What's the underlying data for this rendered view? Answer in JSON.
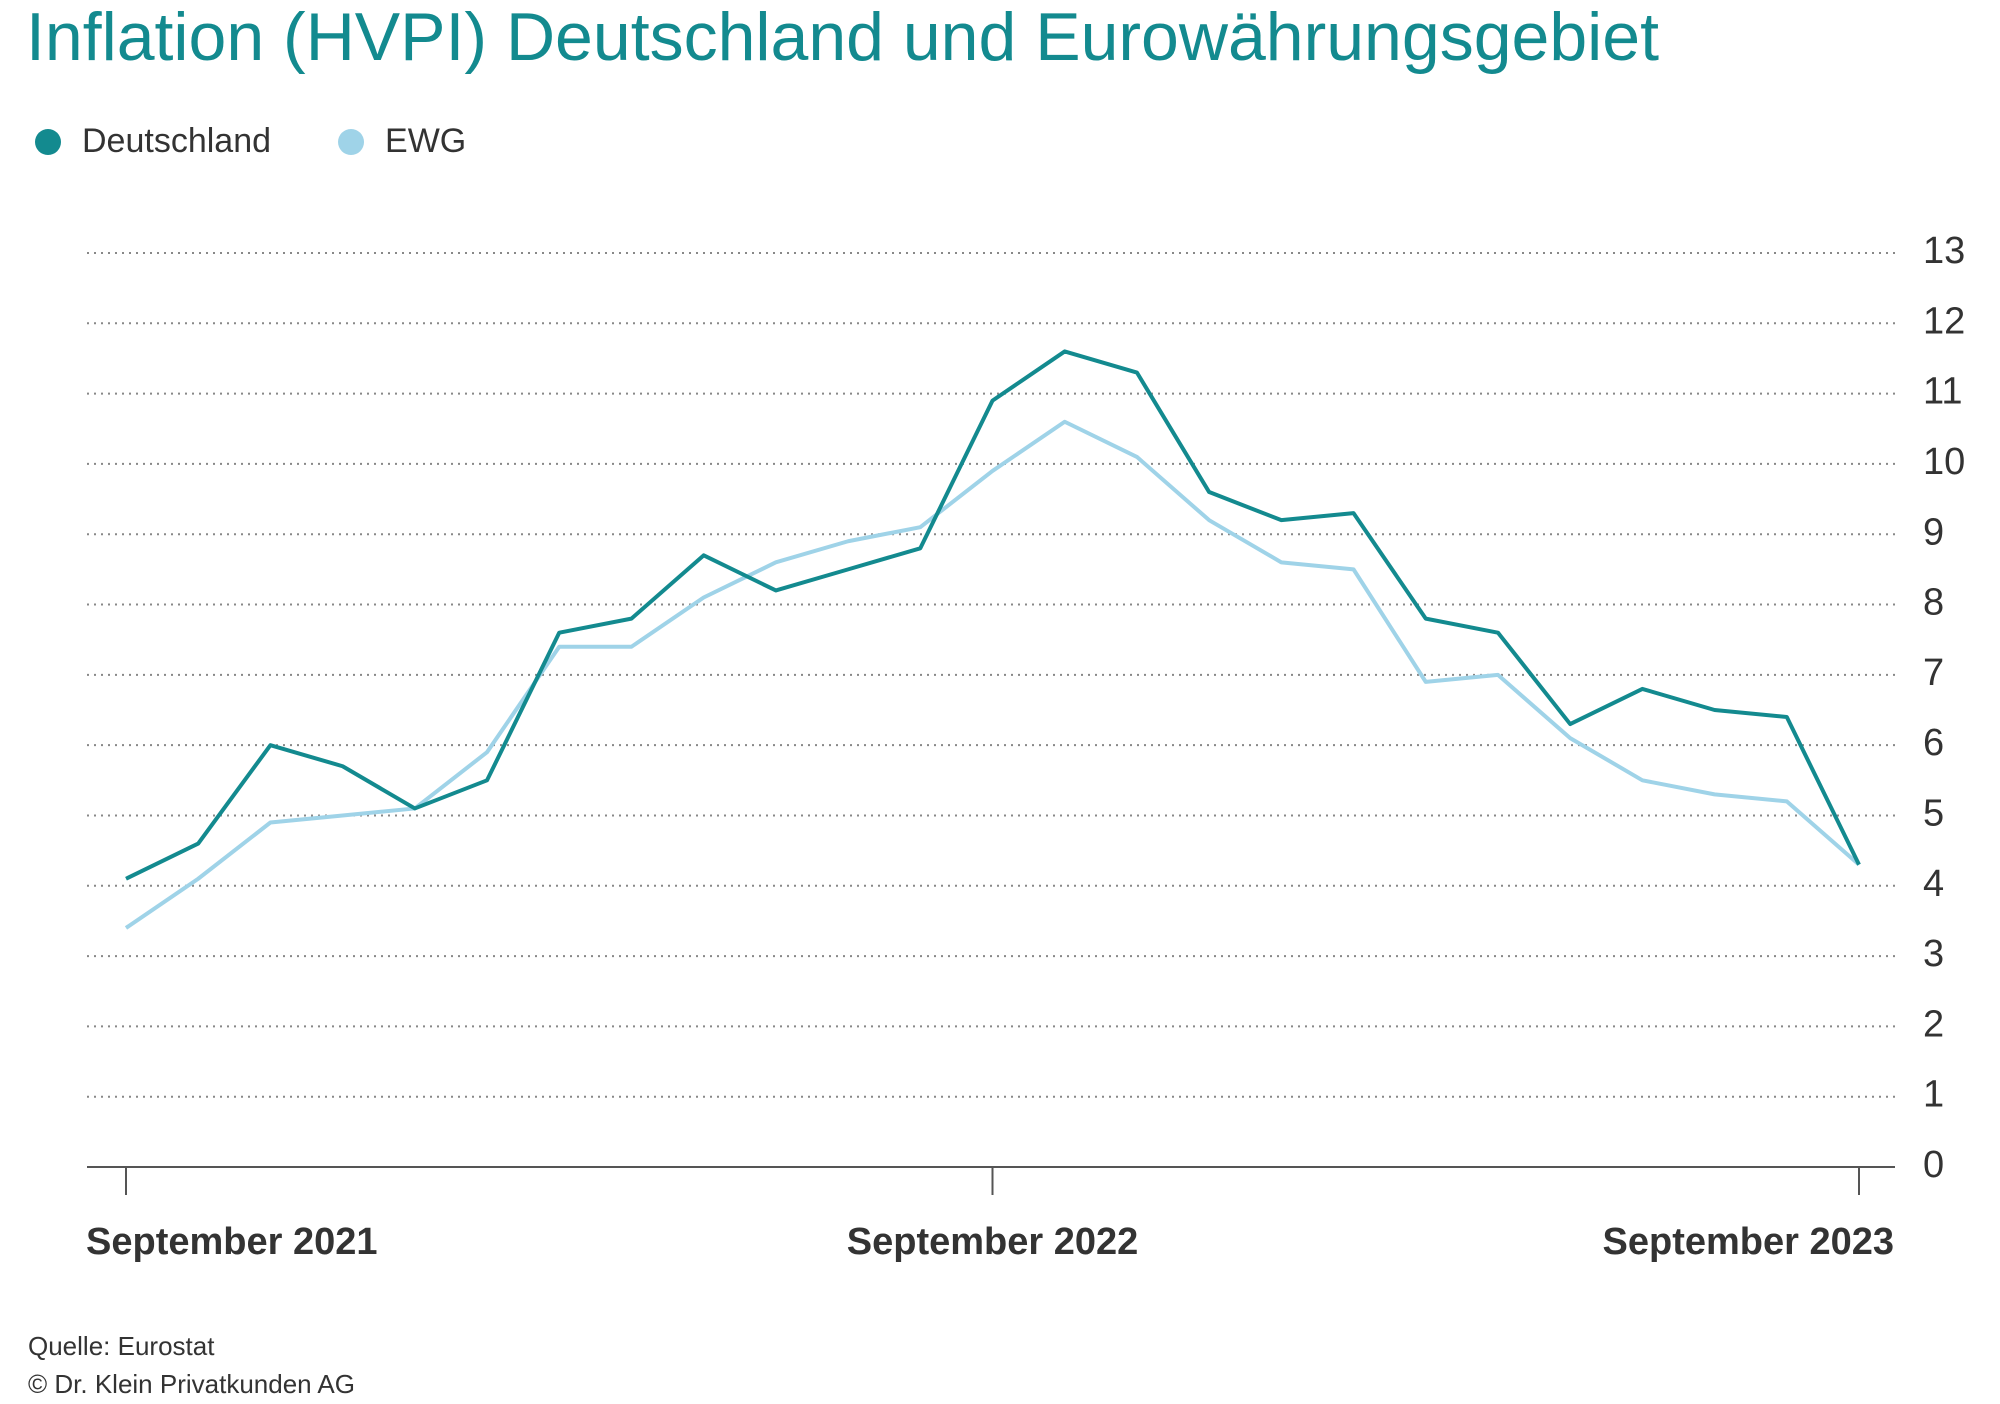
{
  "chart_data": {
    "type": "line",
    "title": "Inflation (HVPI) Deutschland und Eurowährungsgebiet",
    "categories": [
      "September 2021",
      null,
      null,
      null,
      null,
      null,
      null,
      null,
      null,
      null,
      null,
      null,
      "September 2022",
      null,
      null,
      null,
      null,
      null,
      null,
      null,
      null,
      null,
      null,
      null,
      "September 2023"
    ],
    "series": [
      {
        "name": "Deutschland",
        "color": "#138a8f",
        "values": [
          4.1,
          4.6,
          6.0,
          5.7,
          5.1,
          5.5,
          7.6,
          7.8,
          8.7,
          8.2,
          8.5,
          8.8,
          10.9,
          11.6,
          11.3,
          9.6,
          9.2,
          9.3,
          7.8,
          7.6,
          6.3,
          6.8,
          6.5,
          6.4,
          4.3
        ]
      },
      {
        "name": "EWG",
        "color": "#9fd3e8",
        "values": [
          3.4,
          4.1,
          4.9,
          5.0,
          5.1,
          5.9,
          7.4,
          7.4,
          8.1,
          8.6,
          8.9,
          9.1,
          9.9,
          10.6,
          10.1,
          9.2,
          8.6,
          8.5,
          6.9,
          7.0,
          6.1,
          5.5,
          5.3,
          5.2,
          4.3
        ]
      }
    ],
    "ylim": [
      0,
      13
    ],
    "yticks": [
      0,
      1,
      2,
      3,
      4,
      5,
      6,
      7,
      8,
      9,
      10,
      11,
      12,
      13
    ],
    "grid": true,
    "notes": [
      "Quelle: Eurostat",
      "© Dr. Klein Privatkunden AG"
    ]
  }
}
